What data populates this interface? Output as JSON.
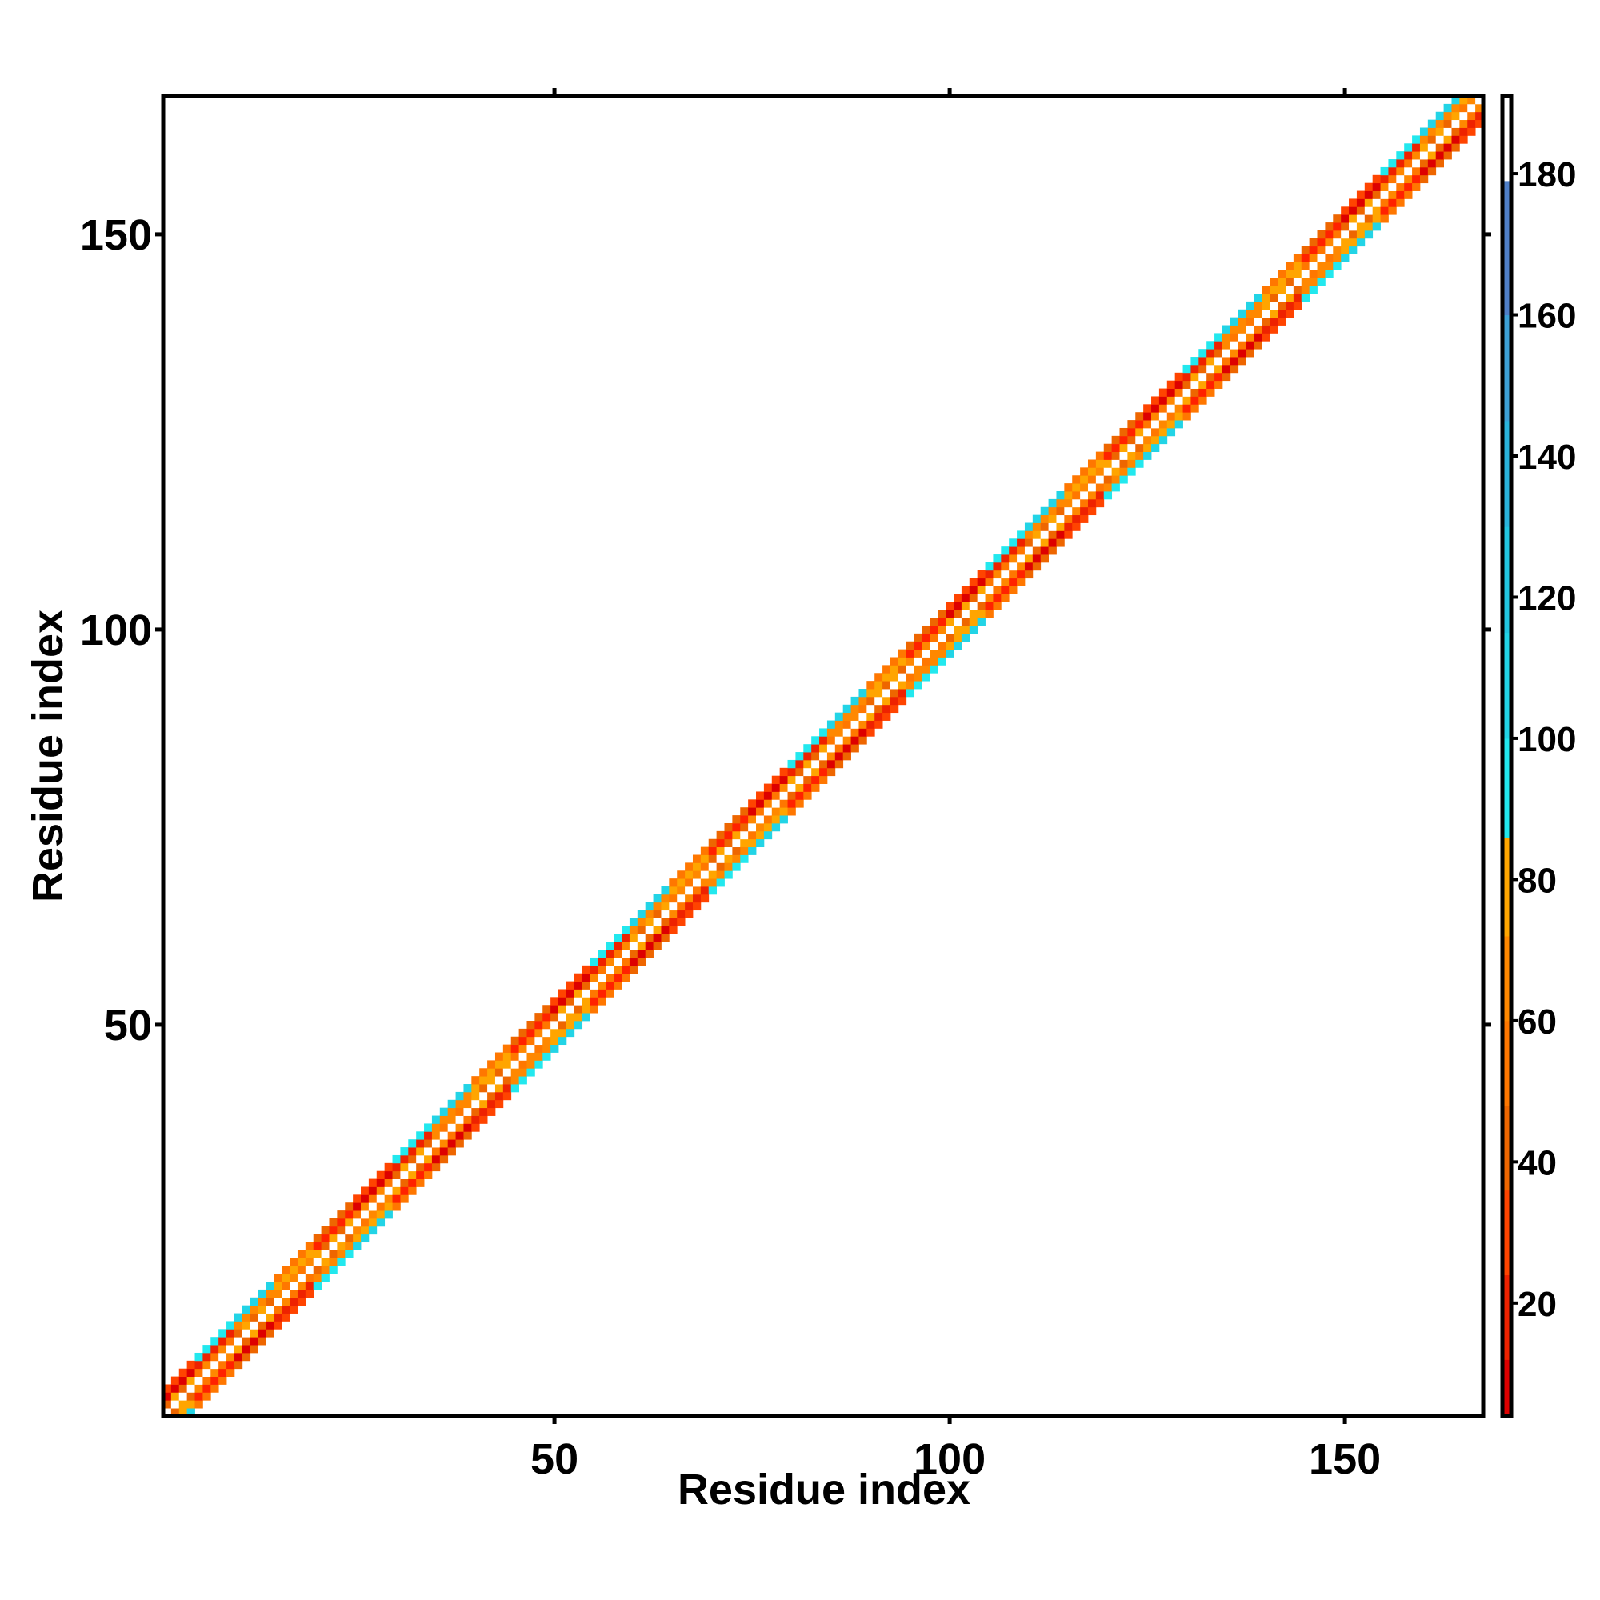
{
  "chart_data": {
    "type": "heatmap",
    "title": "",
    "xlabel": "Residue index",
    "ylabel": "Residue index",
    "xlim": [
      1,
      167
    ],
    "ylim": [
      1,
      167
    ],
    "x_ticks": [
      50,
      100,
      150
    ],
    "y_ticks": [
      50,
      100,
      150
    ],
    "x_tick_labels": [
      "50",
      "100",
      "150"
    ],
    "y_tick_labels": [
      "50",
      "100",
      "150"
    ],
    "diagonal_band_halfwidth": 3,
    "colorbar": {
      "range": [
        4,
        191
      ],
      "ticks": [
        20,
        40,
        60,
        80,
        100,
        120,
        140,
        160,
        180
      ],
      "tick_labels": [
        "20",
        "40",
        "60",
        "80",
        "100",
        "120",
        "140",
        "160",
        "180"
      ],
      "bands": [
        {
          "from": 4,
          "to": 12,
          "color": "#dd0000"
        },
        {
          "from": 12,
          "to": 24,
          "color": "#ee2200"
        },
        {
          "from": 24,
          "to": 36,
          "color": "#ff4400"
        },
        {
          "from": 36,
          "to": 48,
          "color": "#ee6600"
        },
        {
          "from": 48,
          "to": 60,
          "color": "#ff7700"
        },
        {
          "from": 60,
          "to": 72,
          "color": "#ff8800"
        },
        {
          "from": 72,
          "to": 86,
          "color": "#ffa500"
        },
        {
          "from": 86,
          "to": 100,
          "color": "#22e8ee"
        },
        {
          "from": 100,
          "to": 115,
          "color": "#22d4e6"
        },
        {
          "from": 115,
          "to": 130,
          "color": "#22c6e0"
        },
        {
          "from": 130,
          "to": 145,
          "color": "#2ab4dc"
        },
        {
          "from": 145,
          "to": 160,
          "color": "#3ca0d6"
        },
        {
          "from": 160,
          "to": 179,
          "color": "#4f7fc8"
        },
        {
          "from": 179,
          "to": 191,
          "color": "#ffffff"
        }
      ]
    },
    "cell_colors": {
      "d0": "#ffffff",
      "d1": [
        "#ff8800",
        "#ee6600",
        "#ff7700",
        "#ffa500"
      ],
      "d2": [
        "#ff2200",
        "#dd0000",
        "#ee2200",
        "#ff8800",
        "#ffa500"
      ],
      "d3": [
        "#22e8ee",
        "#22d4e6",
        "#ff7700",
        "#ee6600",
        "#ff4400"
      ]
    }
  }
}
